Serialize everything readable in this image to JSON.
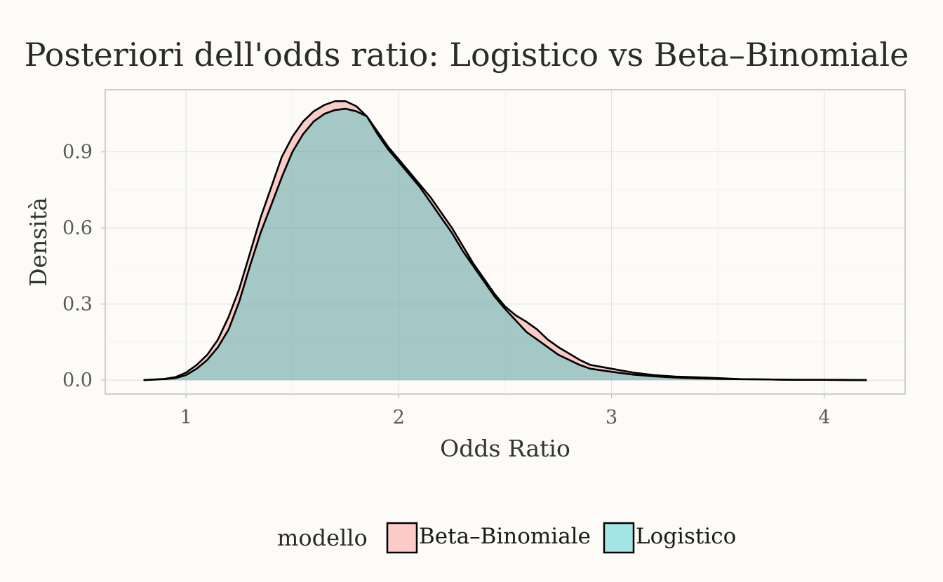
{
  "chart_data": {
    "type": "area",
    "title": "Posteriori dell'odds ratio: Logistico vs Beta–Binomiale",
    "xlabel": "Odds Ratio",
    "ylabel": "Densità",
    "xlim": [
      0.62,
      4.38
    ],
    "ylim": [
      -0.055,
      1.145
    ],
    "x_ticks": [
      1,
      2,
      3,
      4
    ],
    "x_tick_labels": [
      "1",
      "2",
      "3",
      "4"
    ],
    "y_ticks": [
      0,
      0.3,
      0.6,
      0.9
    ],
    "y_tick_labels": [
      "0.0",
      "0.3",
      "0.6",
      "0.9"
    ],
    "grid": true,
    "legend": {
      "title": "modello",
      "placement": "bottom"
    },
    "series": [
      {
        "name": "Beta–Binomiale",
        "color": "#f8766d",
        "x": [
          0.8,
          0.9,
          0.95,
          1.0,
          1.05,
          1.1,
          1.15,
          1.2,
          1.25,
          1.3,
          1.35,
          1.4,
          1.45,
          1.5,
          1.55,
          1.6,
          1.65,
          1.7,
          1.75,
          1.8,
          1.85,
          1.9,
          1.95,
          2.0,
          2.05,
          2.1,
          2.15,
          2.2,
          2.25,
          2.3,
          2.35,
          2.4,
          2.45,
          2.5,
          2.55,
          2.6,
          2.65,
          2.7,
          2.75,
          2.8,
          2.85,
          2.9,
          3.0,
          3.1,
          3.2,
          3.3,
          3.4,
          3.5,
          3.6,
          3.7,
          3.8,
          3.9,
          4.0,
          4.1,
          4.2
        ],
        "y": [
          0.0,
          0.005,
          0.012,
          0.03,
          0.06,
          0.1,
          0.16,
          0.25,
          0.36,
          0.5,
          0.64,
          0.76,
          0.88,
          0.96,
          1.02,
          1.06,
          1.085,
          1.1,
          1.1,
          1.08,
          1.04,
          0.98,
          0.92,
          0.87,
          0.82,
          0.77,
          0.72,
          0.66,
          0.6,
          0.53,
          0.46,
          0.4,
          0.34,
          0.29,
          0.255,
          0.23,
          0.2,
          0.16,
          0.13,
          0.105,
          0.08,
          0.06,
          0.045,
          0.03,
          0.02,
          0.014,
          0.011,
          0.008,
          0.004,
          0.003,
          0.002,
          0.001,
          0.001,
          0.001,
          0.0
        ]
      },
      {
        "name": "Logistico",
        "color": "#00bfc4",
        "x": [
          0.8,
          0.9,
          0.95,
          1.0,
          1.05,
          1.1,
          1.15,
          1.2,
          1.25,
          1.3,
          1.35,
          1.4,
          1.45,
          1.5,
          1.55,
          1.6,
          1.65,
          1.7,
          1.75,
          1.8,
          1.85,
          1.9,
          1.95,
          2.0,
          2.05,
          2.1,
          2.15,
          2.2,
          2.25,
          2.3,
          2.35,
          2.4,
          2.45,
          2.5,
          2.55,
          2.6,
          2.65,
          2.7,
          2.75,
          2.8,
          2.85,
          2.9,
          3.0,
          3.1,
          3.2,
          3.3,
          3.4,
          3.5,
          3.6,
          3.7,
          3.8,
          3.9,
          4.0,
          4.1,
          4.2
        ],
        "y": [
          0.0,
          0.004,
          0.008,
          0.02,
          0.045,
          0.08,
          0.13,
          0.2,
          0.31,
          0.45,
          0.58,
          0.69,
          0.8,
          0.9,
          0.97,
          1.02,
          1.05,
          1.065,
          1.07,
          1.06,
          1.04,
          0.97,
          0.91,
          0.86,
          0.81,
          0.76,
          0.7,
          0.64,
          0.58,
          0.51,
          0.45,
          0.39,
          0.33,
          0.28,
          0.235,
          0.19,
          0.16,
          0.13,
          0.1,
          0.08,
          0.06,
          0.045,
          0.033,
          0.022,
          0.015,
          0.01,
          0.007,
          0.005,
          0.004,
          0.003,
          0.002,
          0.001,
          0.001,
          0.0,
          0.0
        ]
      }
    ]
  }
}
